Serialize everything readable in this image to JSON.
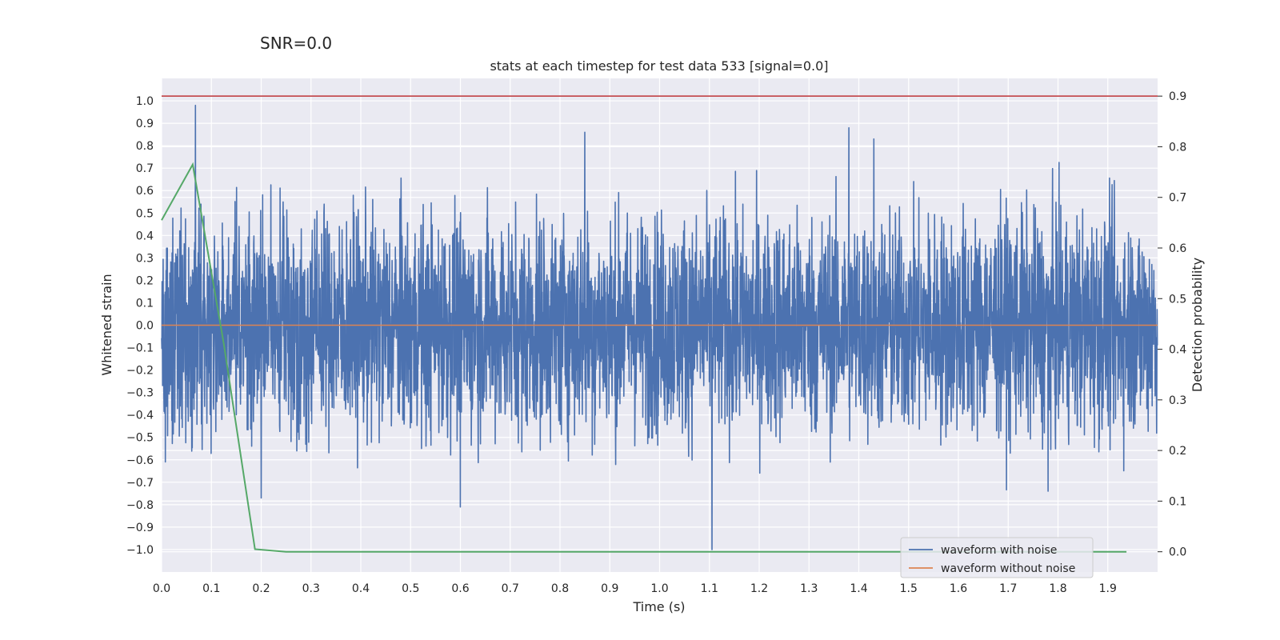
{
  "figure": {
    "suptitle": "SNR=0.0"
  },
  "chart_data": {
    "type": "line",
    "title": "stats at each timestep for test data 533 [signal=0.0]",
    "xlabel": "Time (s)",
    "ylabel": "Whitened strain",
    "y2label": "Detection probability",
    "xlim": [
      0.0,
      2.0
    ],
    "ylim": [
      -1.1,
      1.1
    ],
    "y2lim": [
      -0.04,
      0.935
    ],
    "xticks": [
      "0.0",
      "0.1",
      "0.2",
      "0.3",
      "0.4",
      "0.5",
      "0.6",
      "0.7",
      "0.8",
      "0.9",
      "1.0",
      "1.1",
      "1.2",
      "1.3",
      "1.4",
      "1.5",
      "1.6",
      "1.7",
      "1.8",
      "1.9"
    ],
    "yticks": [
      "1.0",
      "0.9",
      "0.8",
      "0.7",
      "0.6",
      "0.5",
      "0.4",
      "0.3",
      "0.2",
      "0.1",
      "0.0",
      "−0.1",
      "−0.2",
      "−0.3",
      "−0.4",
      "−0.5",
      "−0.6",
      "−0.7",
      "−0.8",
      "−0.9",
      "−1.0"
    ],
    "y2ticks": [
      "0.9",
      "0.8",
      "0.7",
      "0.6",
      "0.5",
      "0.4",
      "0.3",
      "0.2",
      "0.1",
      "0.0"
    ],
    "grid": true,
    "legend_position": "lower-right",
    "legend": [
      "waveform with noise",
      "waveform without noise"
    ],
    "series": [
      {
        "name": "waveform with noise",
        "axis": "left",
        "color": "#4c72b0",
        "style": "dense noise spanning approximately -1.0 to 0.98 with sample rate ~2048 Hz",
        "notable_values": [
          {
            "x": 0.068,
            "y": 0.98
          },
          {
            "x": 0.85,
            "y": 0.86
          },
          {
            "x": 1.38,
            "y": 0.88
          },
          {
            "x": 1.43,
            "y": 0.83
          },
          {
            "x": 1.105,
            "y": -1.0
          },
          {
            "x": 0.6,
            "y": -0.81
          },
          {
            "x": 1.78,
            "y": -0.74
          },
          {
            "x": 0.2,
            "y": -0.77
          }
        ]
      },
      {
        "name": "waveform without noise",
        "axis": "left",
        "color": "#dd8452",
        "x": [
          0.0,
          2.0
        ],
        "y": [
          0.0,
          0.0
        ]
      },
      {
        "axis": "right",
        "color": "#55a868",
        "x": [
          0.0,
          0.0625,
          0.125,
          0.1875,
          0.25,
          0.3125,
          0.375,
          0.4375,
          0.5,
          0.5625,
          0.625,
          0.6875,
          0.75,
          0.8125,
          0.875,
          0.9375,
          1.0,
          1.0625,
          1.125,
          1.1875,
          1.25,
          1.3125,
          1.375,
          1.4375,
          1.5,
          1.5625,
          1.625,
          1.6875,
          1.75,
          1.8125,
          1.875,
          1.9375
        ],
        "y": [
          0.655,
          0.765,
          0.41,
          0.005,
          0.0,
          0.0,
          0.0,
          0.0,
          0.0,
          0.0,
          0.0,
          0.0,
          0.0,
          0.0,
          0.0,
          0.0,
          0.0,
          0.0,
          0.0,
          0.0,
          0.0,
          0.0,
          0.0,
          0.0,
          0.0,
          0.0,
          0.0,
          0.0,
          0.0,
          0.0,
          0.0,
          0.0
        ]
      },
      {
        "axis": "right",
        "color": "#c44e52",
        "x": [
          0.0,
          2.0
        ],
        "y": [
          0.9,
          0.9
        ]
      }
    ]
  }
}
